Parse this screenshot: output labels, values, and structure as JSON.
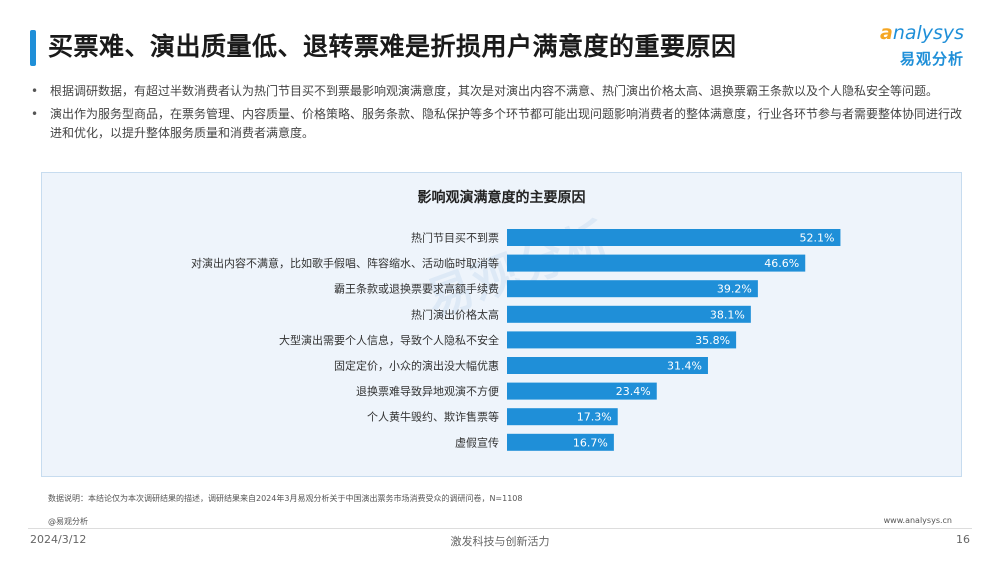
{
  "header": {
    "title": "买票难、演出质量低、退转票难是折损用户满意度的重要原因"
  },
  "logo": {
    "word_first": "a",
    "word_rest": "nalysys",
    "cn": "易观分析"
  },
  "bullets": [
    "根据调研数据，有超过半数消费者认为热门节目买不到票最影响观演满意度，其次是对演出内容不满意、热门演出价格太高、退换票霸王条款以及个人隐私安全等问题。",
    "演出作为服务型商品，在票务管理、内容质量、价格策略、服务条款、隐私保护等多个环节都可能出现问题影响消费者的整体满意度，行业各环节参与者需要整体协同进行改进和优化，以提升整体服务质量和消费者满意度。"
  ],
  "bullet_marker": "•",
  "chart_data": {
    "type": "bar",
    "orientation": "horizontal",
    "title": "影响观演满意度的主要原因",
    "categories": [
      "热门节目买不到票",
      "对演出内容不满意，比如歌手假唱、阵容缩水、活动临时取消等",
      "霸王条款或退换票要求高额手续费",
      "热门演出价格太高",
      "大型演出需要个人信息，导致个人隐私不安全",
      "固定定价，小众的演出没大幅优惠",
      "退换票难导致异地观演不方便",
      "个人黄牛毁约、欺诈售票等",
      "虚假宣传"
    ],
    "values": [
      52.1,
      46.6,
      39.2,
      38.1,
      35.8,
      31.4,
      23.4,
      17.3,
      16.7
    ],
    "value_labels": [
      "52.1%",
      "46.6%",
      "39.2%",
      "38.1%",
      "35.8%",
      "31.4%",
      "23.4%",
      "17.3%",
      "16.7%"
    ],
    "bar_color": "#1f8fd8",
    "label_color": "#ffffff",
    "grid": false,
    "legend": "none"
  },
  "watermark": "易观分析",
  "footer": {
    "note": "数据说明：本结论仅为本次调研结果的描述，调研结果来自2024年3月易观分析关于中国演出票务市场消费受众的调研问卷，N=1108",
    "source": "@易观分析",
    "site": "www.analysys.cn",
    "date": "2024/3/12",
    "slogan": "激发科技与创新活力",
    "page": "16"
  },
  "colors": {
    "accent": "#1f8fd8",
    "logo_orange": "#f5a623",
    "panel_bg": "#eef4fb"
  }
}
